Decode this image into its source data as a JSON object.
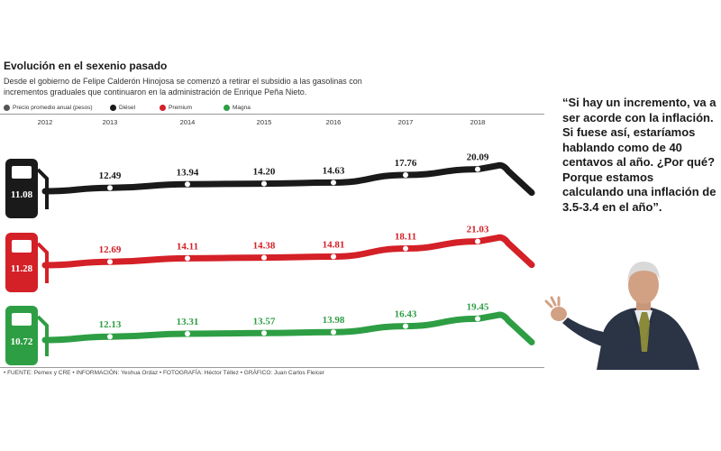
{
  "title": "Evolución en el sexenio pasado",
  "subtitle": "Desde el gobierno de Felipe Calderón Hinojosa se comenzó a retirar el subsidio a las gasolinas con incrementos graduales que continuaron en la administración de Enrique Peña Nieto.",
  "legend": [
    {
      "label": "Precio promedio anual (pesos)",
      "color": "#555555"
    },
    {
      "label": "Diésel",
      "color": "#1a1a1a"
    },
    {
      "label": "Premium",
      "color": "#d42027"
    },
    {
      "label": "Magna",
      "color": "#2e9e44"
    }
  ],
  "quote": "“Si hay un incremento, va a ser acorde con la inflación. Si fuese así, estaríamos hablando como de 40 centavos al año. ¿Por qué? Porque estamos calculando una inflación de 3.5-3.4 en el año”.",
  "footer": "• FUENTE: Pemex y CRE • INFORMACIÓN: Yeshua Ordaz • FOTOGRAFÍA: Héctor Téllez • GRÁFICO: Juan Carlos Fleicer",
  "chart_data": {
    "type": "line",
    "x": [
      "2012",
      "2013",
      "2014",
      "2015",
      "2016",
      "2017",
      "2018"
    ],
    "series": [
      {
        "name": "Diésel",
        "color": "#1a1a1a",
        "values": [
          11.08,
          12.49,
          13.94,
          14.2,
          14.63,
          17.76,
          20.09
        ]
      },
      {
        "name": "Premium",
        "color": "#d42027",
        "values": [
          11.28,
          12.69,
          14.11,
          14.38,
          14.81,
          18.11,
          21.03
        ]
      },
      {
        "name": "Magna",
        "color": "#2e9e44",
        "values": [
          10.72,
          12.13,
          13.31,
          13.57,
          13.98,
          16.43,
          19.45
        ]
      }
    ],
    "value_labels": [
      [
        "11.08",
        "12.49",
        "13.94",
        "14.20",
        "14.63",
        "17.76",
        "20.09"
      ],
      [
        "11.28",
        "12.69",
        "14.11",
        "14.38",
        "14.81",
        "18.11",
        "21.03"
      ],
      [
        "10.72",
        "12.13",
        "13.31",
        "13.57",
        "13.98",
        "16.43",
        "19.45"
      ]
    ]
  }
}
